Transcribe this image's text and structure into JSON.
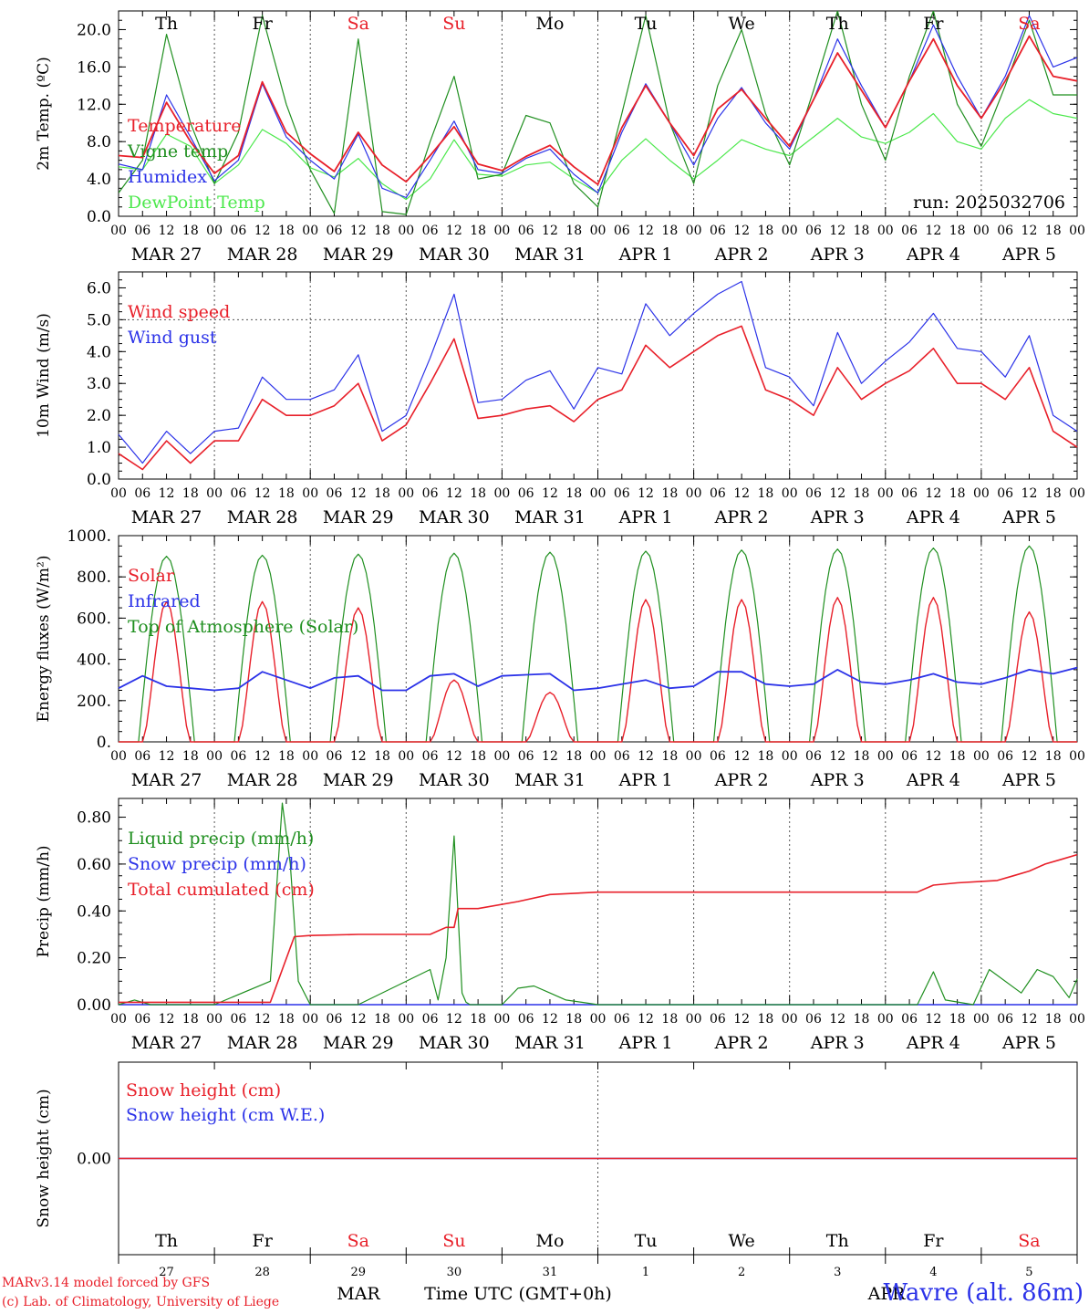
{
  "colors": {
    "red": "#e8202a",
    "blue": "#2b32e8",
    "green": "#1f8f1f",
    "lightgreen": "#4ce84c",
    "grid": "#555555",
    "axis": "#000000"
  },
  "days": [
    {
      "wd": "Th",
      "date": "MAR 27",
      "num": "27",
      "weekend": false
    },
    {
      "wd": "Fr",
      "date": "MAR 28",
      "num": "28",
      "weekend": false
    },
    {
      "wd": "Sa",
      "date": "MAR 29",
      "num": "29",
      "weekend": true
    },
    {
      "wd": "Su",
      "date": "MAR 30",
      "num": "30",
      "weekend": true
    },
    {
      "wd": "Mo",
      "date": "MAR 31",
      "num": "31",
      "weekend": false
    },
    {
      "wd": "Tu",
      "date": "APR 1",
      "num": "1",
      "weekend": false
    },
    {
      "wd": "We",
      "date": "APR 2",
      "num": "2",
      "weekend": false
    },
    {
      "wd": "Th",
      "date": "APR 3",
      "num": "3",
      "weekend": false
    },
    {
      "wd": "Fr",
      "date": "APR 4",
      "num": "4",
      "weekend": false
    },
    {
      "wd": "Sa",
      "date": "APR 5",
      "num": "5",
      "weekend": true
    }
  ],
  "hour_labels": [
    "00",
    "06",
    "12",
    "18"
  ],
  "final_hour_label": "00",
  "bottom": {
    "month_left": "MAR",
    "month_right": "APR",
    "time_label": "Time UTC (GMT+0h)"
  },
  "footer": {
    "credit1": "MARv3.14 model forced by GFS",
    "credit2": "(c) Lab. of Climatology, University of Liege",
    "station": "Wavre (alt. 86m)"
  },
  "chart_data": [
    {
      "type": "line",
      "id": "temperature",
      "ylabel": "2m Temp. (ºC)",
      "ylim": [
        0,
        22
      ],
      "yticks": [
        "0.0",
        "4.0",
        "8.0",
        "12.0",
        "16.0",
        "20.0"
      ],
      "run_label": "run: 2025032706",
      "x_unit": "hours since 2025-03-27 00 UTC",
      "x": [
        0,
        6,
        12,
        18,
        24,
        30,
        36,
        42,
        48,
        54,
        60,
        66,
        72,
        78,
        84,
        90,
        96,
        102,
        108,
        114,
        120,
        126,
        132,
        138,
        144,
        150,
        156,
        162,
        168,
        174,
        180,
        186,
        192,
        198,
        204,
        210,
        216,
        222,
        228,
        234,
        240
      ],
      "series": [
        {
          "name": "Temperature",
          "color": "red",
          "values": [
            6.5,
            6.3,
            12.2,
            8.0,
            4.6,
            6.5,
            14.4,
            9.0,
            6.7,
            4.8,
            9.0,
            5.5,
            3.7,
            6.5,
            9.6,
            5.6,
            4.9,
            6.4,
            7.6,
            5.3,
            3.4,
            9.5,
            14.0,
            10.0,
            6.5,
            11.5,
            13.6,
            10.5,
            7.5,
            12.5,
            17.5,
            13.5,
            9.5,
            14.5,
            19.0,
            14.0,
            10.5,
            14.5,
            19.3,
            15.0,
            14.5
          ]
        },
        {
          "name": "Vigne temp",
          "color": "green",
          "values": [
            2.5,
            6.0,
            19.5,
            10.0,
            3.5,
            9.0,
            21.5,
            12.0,
            5.0,
            0.3,
            19.0,
            0.5,
            0.2,
            8.0,
            15.0,
            4.0,
            4.5,
            10.8,
            10.0,
            3.5,
            1.0,
            11.0,
            21.5,
            10.0,
            3.5,
            14.0,
            20.0,
            11.0,
            5.5,
            13.5,
            22.0,
            12.0,
            6.0,
            15.0,
            22.0,
            12.0,
            7.5,
            14.0,
            21.0,
            13.0,
            13.0
          ]
        },
        {
          "name": "Humidex",
          "color": "blue",
          "values": [
            5.6,
            5.0,
            13.0,
            8.5,
            3.8,
            6.0,
            14.2,
            8.5,
            6.0,
            4.0,
            8.8,
            3.0,
            2.0,
            6.0,
            10.2,
            5.0,
            4.6,
            6.2,
            7.2,
            4.5,
            2.5,
            9.0,
            14.2,
            10.0,
            5.5,
            10.5,
            13.8,
            10.0,
            7.2,
            12.5,
            19.0,
            14.0,
            9.5,
            14.5,
            20.5,
            15.0,
            10.5,
            15.0,
            21.5,
            16.0,
            17.0
          ]
        },
        {
          "name": "DewPoint Temp",
          "color": "lightgreen",
          "values": [
            5.3,
            5.0,
            8.8,
            7.5,
            3.5,
            5.5,
            9.3,
            7.8,
            5.2,
            4.2,
            6.2,
            3.5,
            1.8,
            4.0,
            8.2,
            4.5,
            4.3,
            5.5,
            5.8,
            4.0,
            2.5,
            6.0,
            8.3,
            6.0,
            4.0,
            6.0,
            8.2,
            7.2,
            6.5,
            8.5,
            10.5,
            8.5,
            7.8,
            9.0,
            11.0,
            8.0,
            7.2,
            10.5,
            12.5,
            11.0,
            10.5
          ]
        }
      ]
    },
    {
      "type": "line",
      "id": "wind",
      "ylabel": "10m Wind (m/s)",
      "ylim": [
        0,
        6.5
      ],
      "yticks": [
        "0.0",
        "1.0",
        "2.0",
        "3.0",
        "4.0",
        "5.0",
        "6.0"
      ],
      "threshold": 5.0,
      "x_unit": "hours since 2025-03-27 00 UTC",
      "x": [
        0,
        6,
        12,
        18,
        24,
        30,
        36,
        42,
        48,
        54,
        60,
        66,
        72,
        78,
        84,
        90,
        96,
        102,
        108,
        114,
        120,
        126,
        132,
        138,
        144,
        150,
        156,
        162,
        168,
        174,
        180,
        186,
        192,
        198,
        204,
        210,
        216,
        222,
        228,
        234,
        240
      ],
      "series": [
        {
          "name": "Wind speed",
          "color": "red",
          "values": [
            0.8,
            0.3,
            1.2,
            0.5,
            1.2,
            1.2,
            2.5,
            2.0,
            2.0,
            2.3,
            3.0,
            1.2,
            1.7,
            3.0,
            4.4,
            1.9,
            2.0,
            2.2,
            2.3,
            1.8,
            2.5,
            2.8,
            4.2,
            3.5,
            4.0,
            4.5,
            4.8,
            2.8,
            2.5,
            2.0,
            3.5,
            2.5,
            3.0,
            3.4,
            4.1,
            3.0,
            3.0,
            2.5,
            3.5,
            1.5,
            1.0
          ]
        },
        {
          "name": "Wind gust",
          "color": "blue",
          "values": [
            1.4,
            0.5,
            1.5,
            0.8,
            1.5,
            1.6,
            3.2,
            2.5,
            2.5,
            2.8,
            3.9,
            1.5,
            2.0,
            3.8,
            5.8,
            2.4,
            2.5,
            3.1,
            3.4,
            2.2,
            3.5,
            3.3,
            5.5,
            4.5,
            5.2,
            5.8,
            6.2,
            3.5,
            3.2,
            2.3,
            4.6,
            3.0,
            3.7,
            4.3,
            5.2,
            4.1,
            4.0,
            3.2,
            4.5,
            2.0,
            1.5
          ]
        }
      ]
    },
    {
      "type": "line",
      "id": "energy",
      "ylabel": "Energy fluxes (W/m²)",
      "ylim": [
        0,
        1000
      ],
      "yticks": [
        "0.",
        "200.",
        "400.",
        "600.",
        "800.",
        "1000."
      ],
      "x_unit": "hours since 2025-03-27 00 UTC",
      "series": [
        {
          "name": "Solar",
          "color": "red",
          "peaks": [
            680,
            680,
            650,
            300,
            240,
            690,
            690,
            700,
            700,
            630
          ]
        },
        {
          "name": "Infrared",
          "color": "blue",
          "x": [
            0,
            6,
            12,
            18,
            24,
            30,
            36,
            42,
            48,
            54,
            60,
            66,
            72,
            78,
            84,
            90,
            96,
            102,
            108,
            114,
            120,
            126,
            132,
            138,
            144,
            150,
            156,
            162,
            168,
            174,
            180,
            186,
            192,
            198,
            204,
            210,
            216,
            222,
            228,
            234,
            240
          ],
          "values": [
            260,
            320,
            270,
            260,
            250,
            260,
            340,
            300,
            260,
            310,
            320,
            250,
            250,
            320,
            330,
            270,
            320,
            325,
            330,
            250,
            260,
            280,
            300,
            260,
            270,
            340,
            340,
            280,
            270,
            280,
            350,
            290,
            280,
            300,
            330,
            290,
            280,
            310,
            350,
            330,
            360
          ]
        },
        {
          "name": "Top of Atmosphere (Solar)",
          "color": "green",
          "peaks": [
            900,
            905,
            910,
            915,
            920,
            925,
            930,
            935,
            940,
            950
          ]
        }
      ]
    },
    {
      "type": "line",
      "id": "precip",
      "ylabel": "Precip (mm/h)",
      "ylim": [
        0,
        0.88
      ],
      "yticks": [
        "0.00",
        "0.20",
        "0.40",
        "0.60",
        "0.80"
      ],
      "x_unit": "hours since 2025-03-27 00 UTC",
      "series": [
        {
          "name": "Liquid precip (mm/h)",
          "color": "green",
          "x": [
            0,
            4,
            8,
            24,
            38,
            41,
            43,
            45,
            48,
            60,
            78,
            80,
            82,
            84,
            86,
            87,
            88,
            90,
            96,
            100,
            104,
            108,
            112,
            116,
            120,
            200,
            204,
            207,
            214,
            218,
            226,
            230,
            234,
            238,
            240
          ],
          "values": [
            0,
            0.02,
            0,
            0,
            0.1,
            0.86,
            0.6,
            0.1,
            0,
            0,
            0.15,
            0.02,
            0.2,
            0.72,
            0.05,
            0.01,
            0,
            0,
            0,
            0.07,
            0.08,
            0.05,
            0.02,
            0.01,
            0,
            0,
            0.14,
            0.02,
            0,
            0.15,
            0.05,
            0.15,
            0.12,
            0.03,
            0.11
          ]
        },
        {
          "name": "Snow precip (mm/h)",
          "color": "blue",
          "x": [
            0,
            240
          ],
          "values": [
            0,
            0
          ]
        },
        {
          "name": "Total cumulated (cm)",
          "color": "red",
          "x": [
            0,
            38,
            41,
            44,
            48,
            60,
            78,
            82,
            84,
            85,
            90,
            100,
            108,
            120,
            150,
            200,
            204,
            210,
            220,
            224,
            228,
            232,
            236,
            240
          ],
          "values": [
            0.01,
            0.01,
            0.15,
            0.29,
            0.295,
            0.3,
            0.3,
            0.33,
            0.33,
            0.41,
            0.41,
            0.44,
            0.47,
            0.48,
            0.48,
            0.48,
            0.51,
            0.52,
            0.53,
            0.55,
            0.57,
            0.6,
            0.62,
            0.64
          ]
        }
      ]
    },
    {
      "type": "line",
      "id": "snow",
      "ylabel": "Snow height (cm)",
      "ylim": [
        -1,
        1
      ],
      "yticks": [
        "0.00"
      ],
      "x_unit": "hours since 2025-03-27 00 UTC",
      "series": [
        {
          "name": "Snow height (cm)",
          "color": "red",
          "x": [
            0,
            240
          ],
          "values": [
            0,
            0
          ]
        },
        {
          "name": "Snow height (cm W.E.)",
          "color": "blue",
          "x": [
            0,
            240
          ],
          "values": [
            0,
            0
          ]
        }
      ]
    }
  ]
}
